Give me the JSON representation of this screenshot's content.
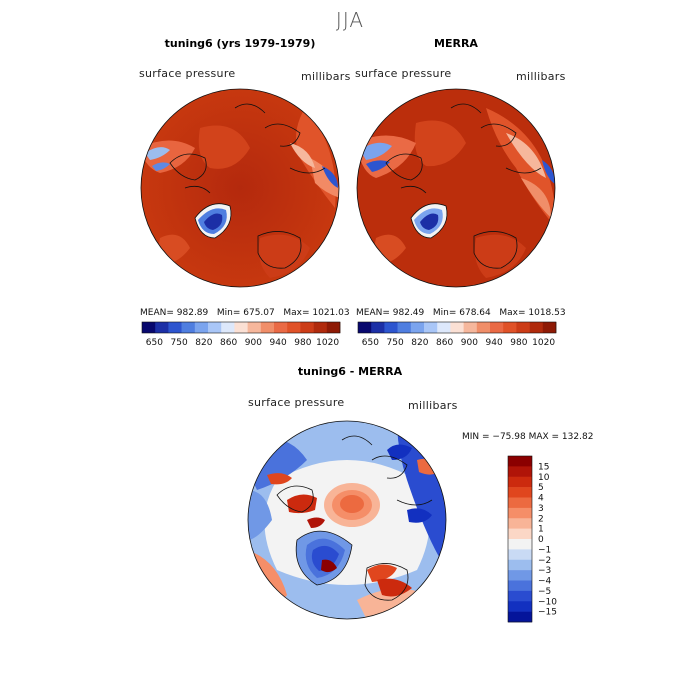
{
  "header": {
    "title": "JJA"
  },
  "panels": [
    {
      "title": "tuning6 (yrs 1979-1979)",
      "variable": "surface pressure",
      "units": "millibars",
      "stats": {
        "mean_label": "MEAN=",
        "mean": "982.89",
        "min_label": "Min=",
        "min": "675.07",
        "max_label": "Max=",
        "max": "1021.03"
      }
    },
    {
      "title": "MERRA",
      "variable": "surface pressure",
      "units": "millibars",
      "stats": {
        "mean_label": "MEAN=",
        "mean": "982.49",
        "min_label": "Min=",
        "min": "678.64",
        "max_label": "Max=",
        "max": "1018.53"
      }
    }
  ],
  "diff": {
    "title": "tuning6 - MERRA",
    "variable": "surface pressure",
    "units": "millibars",
    "minmax_text": "MIN = −75.98 MAX = 132.82"
  },
  "chart_data": [
    {
      "type": "heatmap",
      "title": "tuning6 (yrs 1979-1979)",
      "variable": "surface pressure",
      "units": "millibars",
      "projection": "north polar stereographic",
      "stats": {
        "mean": 982.89,
        "min": 675.07,
        "max": 1021.03
      },
      "colorbar": {
        "orientation": "horizontal",
        "tick_labels": [
          "650",
          "750",
          "820",
          "860",
          "900",
          "940",
          "980",
          "1020"
        ],
        "colors": [
          "#08086e",
          "#1c2fa6",
          "#2d55cf",
          "#4f7ee0",
          "#7ba4ee",
          "#a9c6f7",
          "#dde8fb",
          "#fbe0d4",
          "#f6b79c",
          "#f08e69",
          "#ea6a45",
          "#e05228",
          "#cc3c17",
          "#b02a0c",
          "#8e1a05"
        ]
      }
    },
    {
      "type": "heatmap",
      "title": "MERRA",
      "variable": "surface pressure",
      "units": "millibars",
      "projection": "north polar stereographic",
      "stats": {
        "mean": 982.49,
        "min": 678.64,
        "max": 1018.53
      },
      "colorbar": {
        "orientation": "horizontal",
        "tick_labels": [
          "650",
          "750",
          "820",
          "860",
          "900",
          "940",
          "980",
          "1020"
        ],
        "colors": [
          "#08086e",
          "#1c2fa6",
          "#2d55cf",
          "#4f7ee0",
          "#7ba4ee",
          "#a9c6f7",
          "#dde8fb",
          "#fbe0d4",
          "#f6b79c",
          "#f08e69",
          "#ea6a45",
          "#e05228",
          "#cc3c17",
          "#b02a0c",
          "#8e1a05"
        ]
      }
    },
    {
      "type": "heatmap",
      "title": "tuning6 - MERRA",
      "variable": "surface pressure",
      "units": "millibars",
      "projection": "north polar stereographic",
      "stats": {
        "min": -75.98,
        "max": 132.82
      },
      "colorbar": {
        "orientation": "vertical",
        "tick_labels": [
          "15",
          "10",
          "5",
          "4",
          "3",
          "2",
          "1",
          "0",
          "−1",
          "−2",
          "−3",
          "−4",
          "−5",
          "−10",
          "−15"
        ],
        "colors": [
          "#8b0000",
          "#b01408",
          "#cc2a0e",
          "#e0461e",
          "#ec6a40",
          "#f58e68",
          "#f8b497",
          "#fbd7c6",
          "#f3f3f3",
          "#c9daf4",
          "#9cbdee",
          "#7098e6",
          "#4a72dc",
          "#2a4cd0",
          "#1230c0",
          "#04149a"
        ]
      }
    }
  ]
}
